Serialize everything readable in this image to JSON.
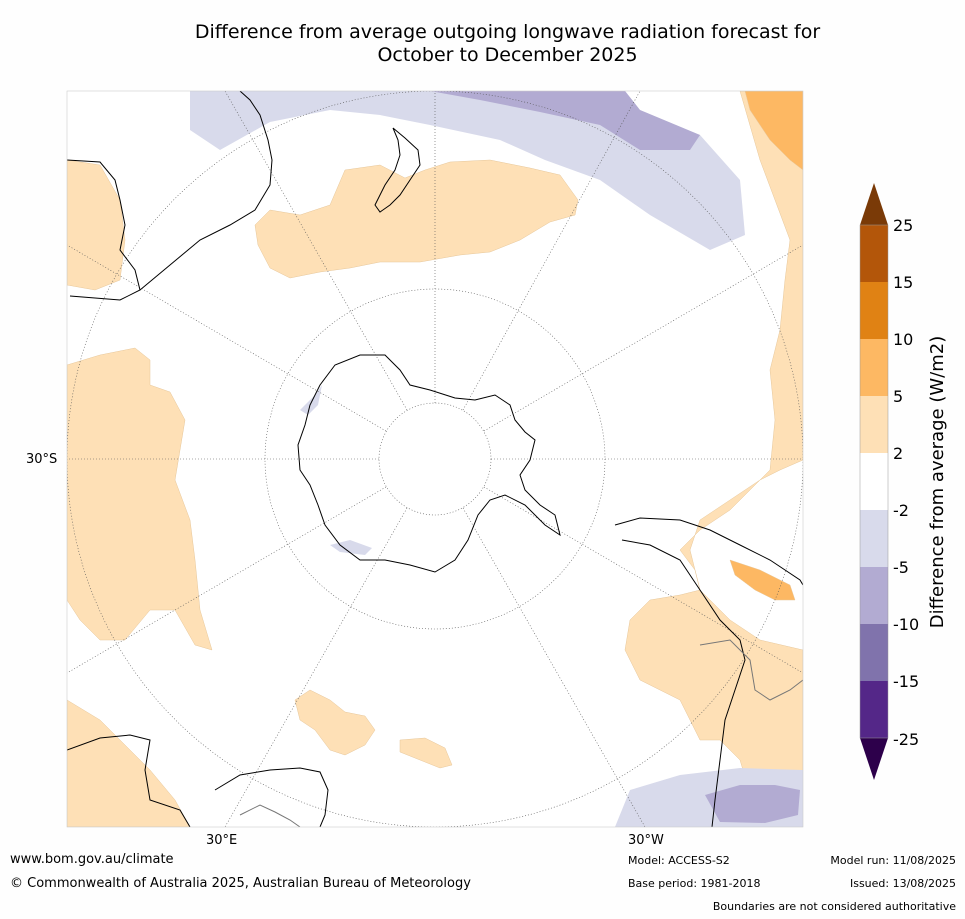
{
  "title": {
    "line1": "Difference from average outgoing longwave radiation forecast for",
    "line2": "October to December 2025"
  },
  "map": {
    "projection": "south-polar-stereographic",
    "graticule_labels": {
      "left": "30°S",
      "bottom_left": "30°E",
      "bottom_right": "30°W"
    }
  },
  "colorbar": {
    "label": "Difference from average (W/m2)",
    "ticks": [
      "25",
      "15",
      "10",
      "5",
      "2",
      "-2",
      "-5",
      "-10",
      "-15",
      "-25"
    ],
    "colors": {
      "above_25": "#7a3a07",
      "15_to_25": "#b3560a",
      "10_to_15": "#e08214",
      "5_to_10": "#fdb863",
      "2_to_5": "#fee0b6",
      "neg2_to_2": "#ffffff",
      "neg5_to_neg2": "#d8daeb",
      "neg10_to_neg5": "#b2abd2",
      "neg15_to_neg10": "#8073ac",
      "neg25_to_neg15": "#542788",
      "below_neg25": "#2d004b"
    }
  },
  "footer": {
    "website": "www.bom.gov.au/climate",
    "copyright": "© Commonwealth of Australia 2025, Australian Bureau of Meteorology",
    "model": "Model: ACCESS-S2",
    "base_period": "Base period: 1981-2018",
    "model_run": "Model run: 11/08/2025",
    "issued": "Issued: 13/08/2025",
    "disclaimer": "Boundaries are not considered authoritative"
  }
}
